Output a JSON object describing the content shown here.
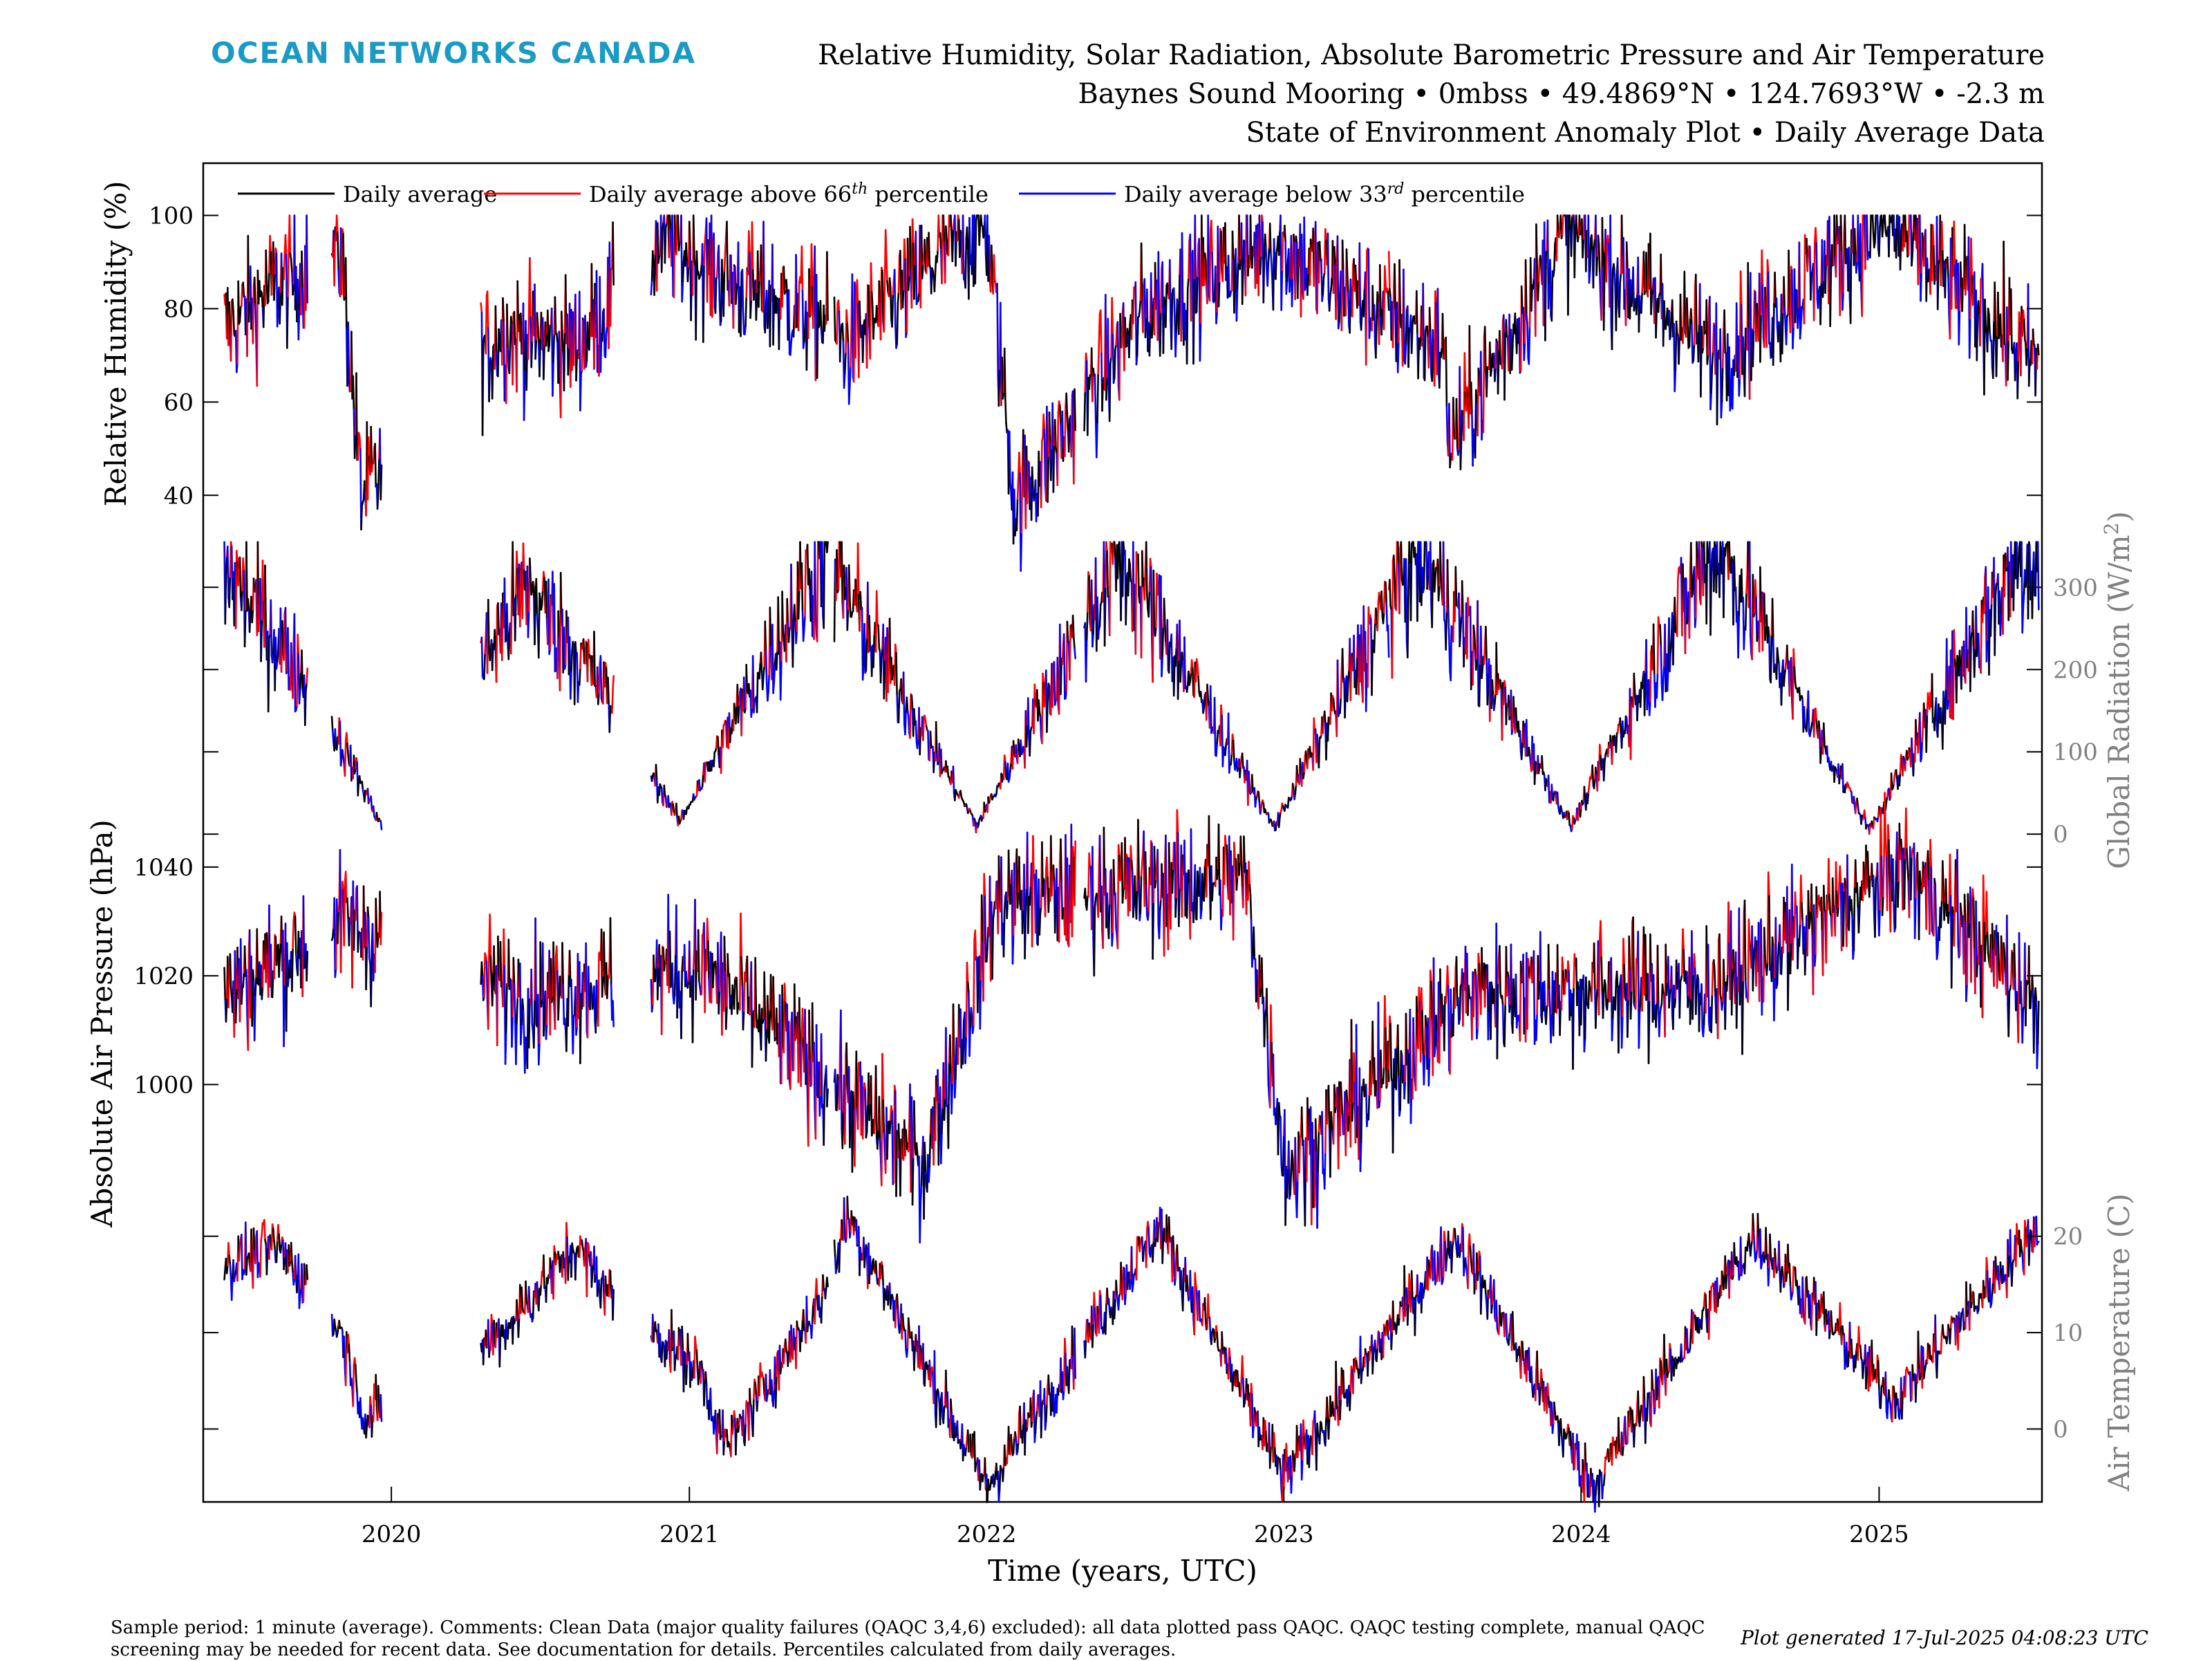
{
  "header": {
    "logo_text": "OCEAN NETWORKS CANADA",
    "title_line1": "Relative Humidity, Solar Radiation, Absolute Barometric Pressure and Air Temperature",
    "title_line2": "Baynes Sound Mooring • 0mbss • 49.4869°N • 124.7693°W • -2.3 m",
    "title_line3": "State of Environment Anomaly Plot • Daily Average Data"
  },
  "footer": {
    "note": "Sample period: 1 minute (average). Comments: Clean Data (major quality failures (QAQC 3,4,6) excluded): all data plotted pass QAQC. QAQC testing complete, manual QAQC screening may be needed for recent data. See documentation for details. Percentiles calculated from daily averages.",
    "generated": "Plot generated 17-Jul-2025 04:08:23 UTC"
  },
  "colors": {
    "normal": "#000000",
    "above": "#ff0000",
    "below": "#0000ff",
    "logo": "#1b9bc4",
    "right_axis": "#808080"
  },
  "chart_data": {
    "type": "line",
    "xlabel": "Time (years, UTC)",
    "x_range": [
      "2019-05-15",
      "2025-07-20"
    ],
    "x_ticks": [
      "2020",
      "2021",
      "2022",
      "2023",
      "2024",
      "2025"
    ],
    "legend": {
      "placement": "top-left",
      "entries": [
        {
          "label": "Daily average",
          "color": "#000000"
        },
        {
          "label": "Daily average above 66",
          "sup": "th",
          "suffix": " percentile",
          "color": "#ff0000"
        },
        {
          "label": "Daily average below 33",
          "sup": "rd",
          "suffix": " percentile",
          "color": "#0000ff"
        }
      ]
    },
    "panels": [
      {
        "key": "rh",
        "ylabel": "Relative Humidity (%)",
        "axis_side": "left",
        "ylim": [
          35,
          110
        ],
        "ticks": [
          40,
          60,
          80,
          100
        ],
        "segments": [
          [
            "2019-06-10",
            "2019-09-20"
          ],
          [
            "2019-10-20",
            "2019-12-20"
          ],
          [
            "2020-04-20",
            "2020-09-30"
          ],
          [
            "2020-11-15",
            "2021-06-20"
          ],
          [
            "2021-06-28",
            "2022-04-20"
          ],
          [
            "2022-05-01",
            "2023-05-10"
          ],
          [
            "2023-05-10",
            "2025-07-16"
          ]
        ],
        "key_points": [
          [
            "2019-06-15",
            76
          ],
          [
            "2019-08-10",
            85
          ],
          [
            "2019-11-01",
            92
          ],
          [
            "2019-11-25",
            40
          ],
          [
            "2020-05-15",
            75
          ],
          [
            "2020-08-15",
            72
          ],
          [
            "2020-12-01",
            95
          ],
          [
            "2021-03-01",
            85
          ],
          [
            "2021-06-15",
            78
          ],
          [
            "2021-07-15",
            72
          ],
          [
            "2021-11-15",
            93
          ],
          [
            "2022-01-01",
            98
          ],
          [
            "2022-02-05",
            38
          ],
          [
            "2022-07-15",
            80
          ],
          [
            "2022-12-15",
            94
          ],
          [
            "2023-07-15",
            72
          ],
          [
            "2023-07-25",
            51
          ],
          [
            "2023-12-15",
            97
          ],
          [
            "2024-06-15",
            70
          ],
          [
            "2024-12-15",
            96
          ],
          [
            "2025-01-15",
            98
          ],
          [
            "2025-07-15",
            68
          ]
        ]
      },
      {
        "key": "rad",
        "ylabel": "Global Radiation (W/m",
        "ylabel_sup": "2",
        "ylabel_tail": ")",
        "axis_side": "right",
        "ylim": [
          -20,
          370
        ],
        "ticks": [
          0,
          100,
          200,
          300
        ],
        "segments": [
          [
            "2019-06-10",
            "2019-09-20"
          ],
          [
            "2019-10-20",
            "2019-12-20"
          ],
          [
            "2020-04-20",
            "2020-09-30"
          ],
          [
            "2020-11-15",
            "2021-06-20"
          ],
          [
            "2021-06-28",
            "2022-04-20"
          ],
          [
            "2022-05-01",
            "2023-05-10"
          ],
          [
            "2023-05-10",
            "2025-07-16"
          ]
        ],
        "key_points": [
          [
            "2019-06-15",
            320
          ],
          [
            "2019-09-15",
            190
          ],
          [
            "2019-11-01",
            110
          ],
          [
            "2019-12-20",
            10
          ],
          [
            "2020-06-15",
            300
          ],
          [
            "2020-09-15",
            180
          ],
          [
            "2020-12-20",
            15
          ],
          [
            "2021-06-15",
            340
          ],
          [
            "2021-12-20",
            10
          ],
          [
            "2022-06-15",
            340
          ],
          [
            "2022-12-20",
            8
          ],
          [
            "2023-06-15",
            350
          ],
          [
            "2023-12-20",
            10
          ],
          [
            "2024-06-15",
            355
          ],
          [
            "2024-12-20",
            5
          ],
          [
            "2025-06-20",
            335
          ]
        ]
      },
      {
        "key": "pres",
        "ylabel": "Absolute Air Pressure (hPa)",
        "axis_side": "left",
        "ylim": [
          983,
          1041
        ],
        "ticks": [
          1000,
          1020,
          1040
        ],
        "segments": [
          [
            "2019-06-10",
            "2019-09-20"
          ],
          [
            "2019-10-20",
            "2019-12-20"
          ],
          [
            "2020-04-20",
            "2020-09-30"
          ],
          [
            "2020-11-15",
            "2021-06-20"
          ],
          [
            "2021-06-28",
            "2022-04-20"
          ],
          [
            "2022-05-01",
            "2023-05-10"
          ],
          [
            "2023-05-10",
            "2025-07-16"
          ]
        ],
        "key_points": [
          [
            "2019-06-15",
            1017
          ],
          [
            "2019-11-01",
            1030
          ],
          [
            "2020-06-15",
            1016
          ],
          [
            "2021-01-15",
            1022
          ],
          [
            "2021-10-15",
            985
          ],
          [
            "2022-01-15",
            1034
          ],
          [
            "2022-11-15",
            1038
          ],
          [
            "2023-01-05",
            984
          ],
          [
            "2023-08-15",
            1017
          ],
          [
            "2024-06-15",
            1018
          ],
          [
            "2025-02-01",
            1040
          ],
          [
            "2025-07-15",
            1015
          ]
        ]
      },
      {
        "key": "temp",
        "ylabel": "Air Temperature (C)",
        "axis_side": "right",
        "ylim": [
          -7,
          25
        ],
        "ticks": [
          0,
          10,
          20
        ],
        "segments": [
          [
            "2019-06-10",
            "2019-09-20"
          ],
          [
            "2019-10-20",
            "2019-12-20"
          ],
          [
            "2020-04-20",
            "2020-09-30"
          ],
          [
            "2020-11-15",
            "2021-06-20"
          ],
          [
            "2021-06-28",
            "2022-04-20"
          ],
          [
            "2022-05-01",
            "2023-05-10"
          ],
          [
            "2023-05-10",
            "2025-07-16"
          ]
        ],
        "key_points": [
          [
            "2019-06-15",
            17
          ],
          [
            "2019-08-15",
            19
          ],
          [
            "2019-11-01",
            10
          ],
          [
            "2019-12-01",
            1
          ],
          [
            "2020-05-15",
            10
          ],
          [
            "2020-08-15",
            19
          ],
          [
            "2020-09-25",
            14
          ],
          [
            "2021-01-15",
            6
          ],
          [
            "2021-02-15",
            -2
          ],
          [
            "2021-06-15",
            14
          ],
          [
            "2021-07-15",
            22
          ],
          [
            "2022-01-01",
            -6
          ],
          [
            "2022-08-01",
            21
          ],
          [
            "2023-01-01",
            -5
          ],
          [
            "2023-08-01",
            20
          ],
          [
            "2024-01-15",
            -6
          ],
          [
            "2024-08-01",
            20
          ],
          [
            "2025-01-20",
            3
          ],
          [
            "2025-07-15",
            21
          ]
        ]
      }
    ]
  }
}
